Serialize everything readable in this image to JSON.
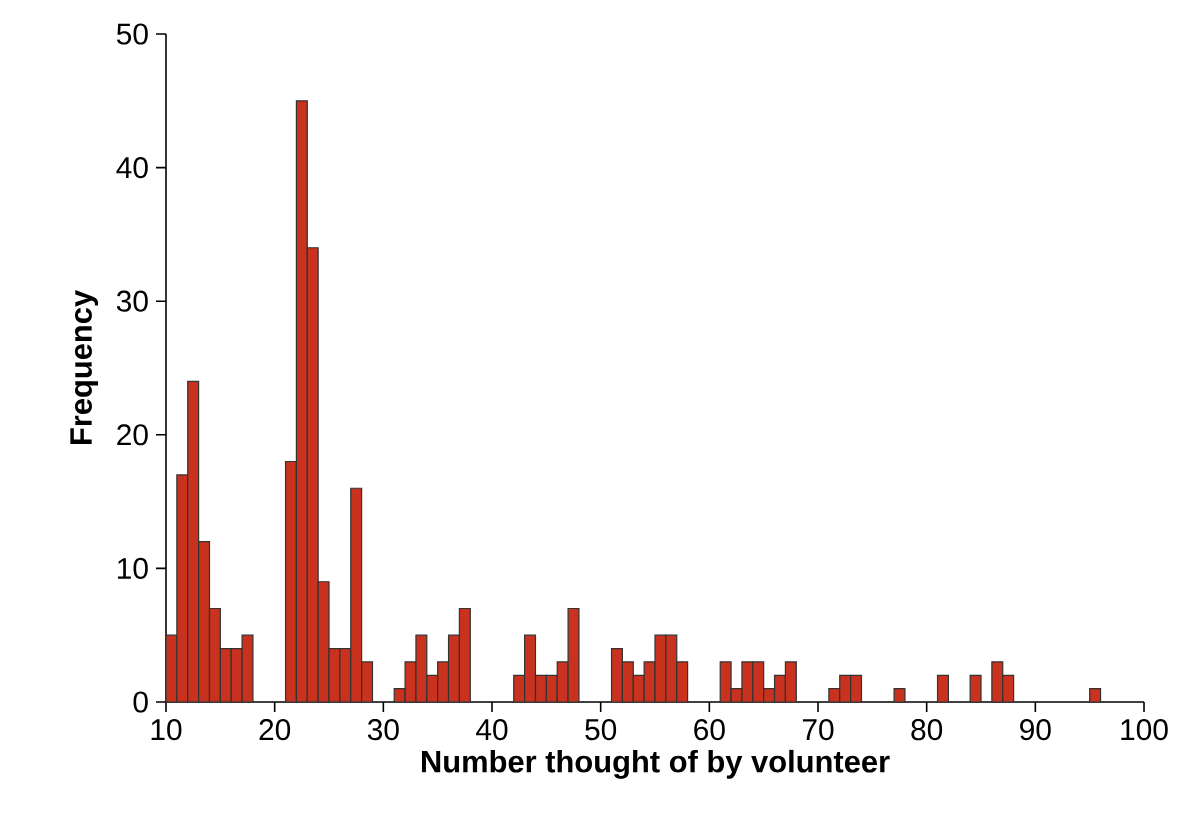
{
  "chart_data": {
    "type": "histogram",
    "xlabel": "Number thought of by volunteer",
    "ylabel": "Frequency",
    "bins": [
      10,
      11,
      12,
      13,
      14,
      15,
      16,
      17,
      18,
      19,
      20,
      21,
      22,
      23,
      24,
      25,
      26,
      27,
      28,
      29,
      30,
      31,
      32,
      33,
      34,
      35,
      36,
      37,
      38,
      39,
      40,
      41,
      42,
      43,
      44,
      45,
      46,
      47,
      48,
      49,
      50,
      51,
      52,
      53,
      54,
      55,
      56,
      57,
      58,
      59,
      60,
      61,
      62,
      63,
      64,
      65,
      66,
      67,
      68,
      69,
      70,
      71,
      72,
      73,
      74,
      75,
      76,
      77,
      78,
      79,
      80,
      81,
      82,
      83,
      84,
      85,
      86,
      87,
      88,
      89,
      90,
      91,
      92,
      93,
      94,
      95,
      96
    ],
    "values": [
      5,
      17,
      24,
      12,
      7,
      4,
      4,
      5,
      0,
      0,
      0,
      18,
      45,
      34,
      9,
      4,
      4,
      16,
      3,
      0,
      0,
      1,
      3,
      5,
      2,
      3,
      5,
      7,
      0,
      0,
      0,
      0,
      2,
      5,
      2,
      2,
      3,
      7,
      0,
      0,
      0,
      4,
      3,
      2,
      3,
      5,
      5,
      3,
      0,
      0,
      0,
      3,
      1,
      3,
      3,
      1,
      2,
      3,
      0,
      0,
      0,
      1,
      2,
      2,
      0,
      0,
      0,
      1,
      0,
      0,
      0,
      2,
      0,
      0,
      2,
      0,
      3,
      2,
      0,
      0,
      0,
      0,
      0,
      0,
      0,
      1
    ],
    "color": "#c8321e",
    "xlim": [
      10,
      100
    ],
    "ylim": [
      0,
      50
    ],
    "xticks": [
      10,
      20,
      30,
      40,
      50,
      60,
      70,
      80,
      90,
      100
    ],
    "yticks": [
      0,
      10,
      20,
      30,
      40,
      50
    ],
    "grid": false
  }
}
